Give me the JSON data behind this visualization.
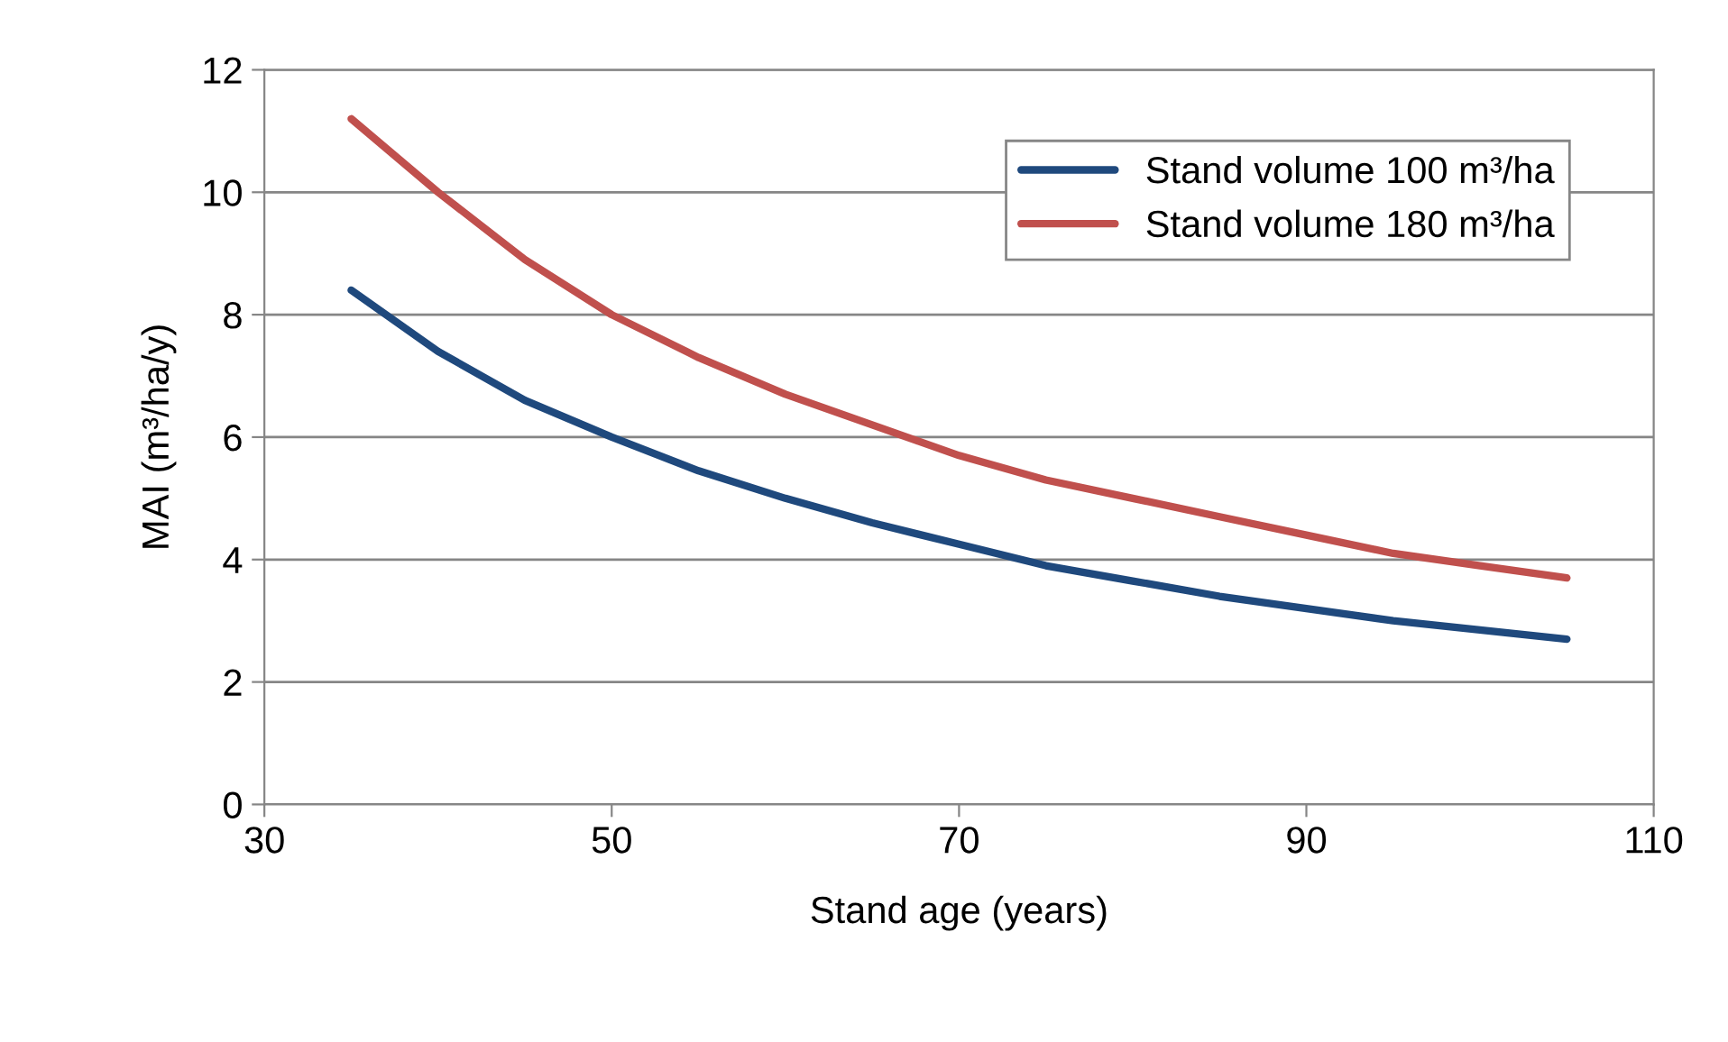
{
  "chart_data": {
    "type": "line",
    "xlabel": "Stand age (years)",
    "ylabel": "MAI (m³/ha/y)",
    "x": [
      35,
      40,
      45,
      50,
      55,
      60,
      65,
      70,
      75,
      80,
      85,
      90,
      95,
      100,
      105
    ],
    "series": [
      {
        "name": "Stand volume 100 m³/ha",
        "color": "#1f497d",
        "values": [
          8.4,
          7.4,
          6.6,
          6.0,
          5.45,
          5.0,
          4.6,
          4.25,
          3.9,
          3.65,
          3.4,
          3.2,
          3.0,
          2.85,
          2.7
        ]
      },
      {
        "name": "Stand volume 180 m³/ha",
        "color": "#c0504d",
        "values": [
          11.2,
          10.0,
          8.9,
          8.0,
          7.3,
          6.7,
          6.2,
          5.7,
          5.3,
          5.0,
          4.7,
          4.4,
          4.1,
          3.9,
          3.7
        ]
      }
    ],
    "xlim": [
      30,
      110
    ],
    "xticks": [
      30,
      50,
      70,
      90,
      110
    ],
    "ylim": [
      0,
      12
    ],
    "yticks": [
      0,
      2,
      4,
      6,
      8,
      10,
      12
    ],
    "grid": "y",
    "legend": "top right",
    "marker": "none",
    "line_style": "solid"
  }
}
